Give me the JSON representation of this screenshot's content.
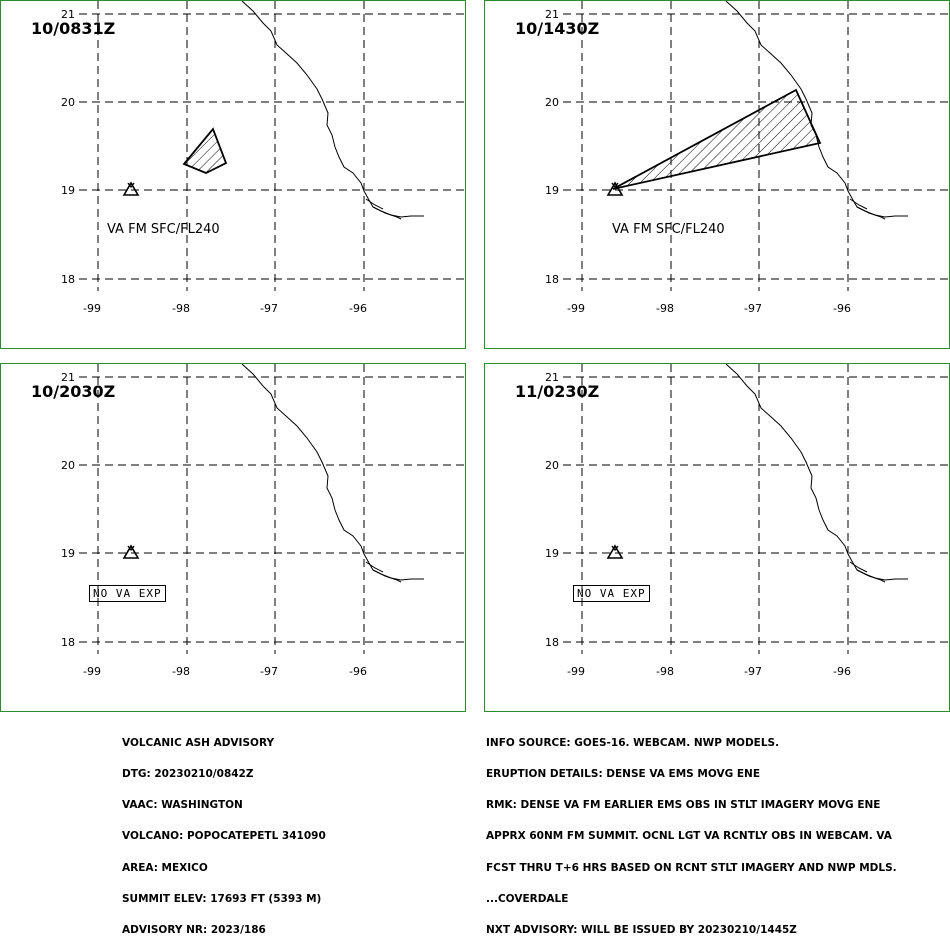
{
  "panels": [
    {
      "time": "10/0831Z",
      "label": "VA FM SFC/FL240",
      "kind": "ash_small"
    },
    {
      "time": "10/1430Z",
      "label": "VA FM SFC/FL240",
      "kind": "ash_wedge"
    },
    {
      "time": "10/2030Z",
      "label": "NO VA EXP",
      "kind": "none"
    },
    {
      "time": "11/0230Z",
      "label": "NO VA EXP",
      "kind": "none"
    }
  ],
  "axes": {
    "lon_ticks": [
      "-99",
      "-98",
      "-97",
      "-96"
    ],
    "lat_ticks": [
      "21",
      "20",
      "19",
      "18"
    ]
  },
  "advisory_left": [
    "VOLCANIC ASH ADVISORY",
    "DTG: 20230210/0842Z",
    "VAAC: WASHINGTON",
    "VOLCANO: POPOCATEPETL 341090",
    "AREA: MEXICO",
    "SUMMIT ELEV: 17693 FT (5393 M)",
    "ADVISORY NR: 2023/186"
  ],
  "advisory_right": [
    "INFO SOURCE: GOES-16. WEBCAM. NWP MODELS.",
    "ERUPTION DETAILS: DENSE VA EMS MOVG ENE",
    "RMK: DENSE VA FM EARLIER EMS OBS IN STLT IMAGERY MOVG ENE",
    "APPRX 60NM FM SUMMIT. OCNL LGT VA RCNTLY OBS IN WEBCAM. VA",
    "FCST THRU T+6 HRS BASED ON RCNT STLT IMAGERY AND NWP MDLS.",
    "...COVERDALE",
    "NXT ADVISORY: WILL BE ISSUED BY 20230210/1445Z"
  ]
}
